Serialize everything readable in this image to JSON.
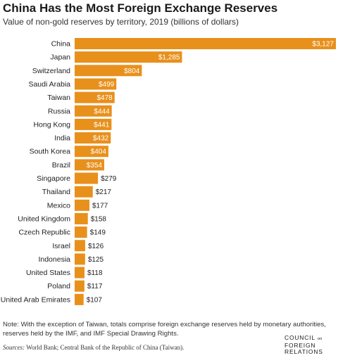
{
  "colors": {
    "bar": "#e8901c",
    "label_inside": "#ffffff",
    "label_outside": "#222222"
  },
  "chart_data": {
    "type": "bar",
    "orientation": "horizontal",
    "title": "China Has the Most Foreign Exchange Reserves",
    "subtitle": "Value of non-gold reserves by territory, 2019 (billions of dollars)",
    "xlabel": "",
    "ylabel": "",
    "grid": false,
    "legend": "none",
    "xlim": [
      0,
      3127
    ],
    "categories": [
      "China",
      "Japan",
      "Switzerland",
      "Saudi Arabia",
      "Taiwan",
      "Russia",
      "Hong Kong",
      "India",
      "South Korea",
      "Brazil",
      "Singapore",
      "Thailand",
      "Mexico",
      "United Kingdom",
      "Czech Republic",
      "Israel",
      "Indonesia",
      "United States",
      "Poland",
      "United Arab Emirates"
    ],
    "values": [
      3127,
      1285,
      804,
      499,
      478,
      444,
      441,
      432,
      404,
      354,
      279,
      217,
      177,
      158,
      149,
      126,
      125,
      118,
      117,
      107
    ],
    "value_labels": [
      "$3,127",
      "$1,285",
      "$804",
      "$499",
      "$478",
      "$444",
      "$441",
      "$432",
      "$404",
      "$354",
      "$279",
      "$217",
      "$177",
      "$158",
      "$149",
      "$126",
      "$125",
      "$118",
      "$117",
      "$107"
    ]
  },
  "note": "Note: With the exception of Taiwan, totals comprise foreign exchange reserves held by monetary authorities, reserves held by the IMF, and IMF Special Drawing Rights.",
  "sources": {
    "label": "Sources:",
    "text": " World Bank; Central Bank of the Republic of China (Taiwan)."
  },
  "logo": {
    "line1": "COUNCIL",
    "line1_small": "on",
    "line2": "FOREIGN",
    "line3": "RELATIONS"
  }
}
